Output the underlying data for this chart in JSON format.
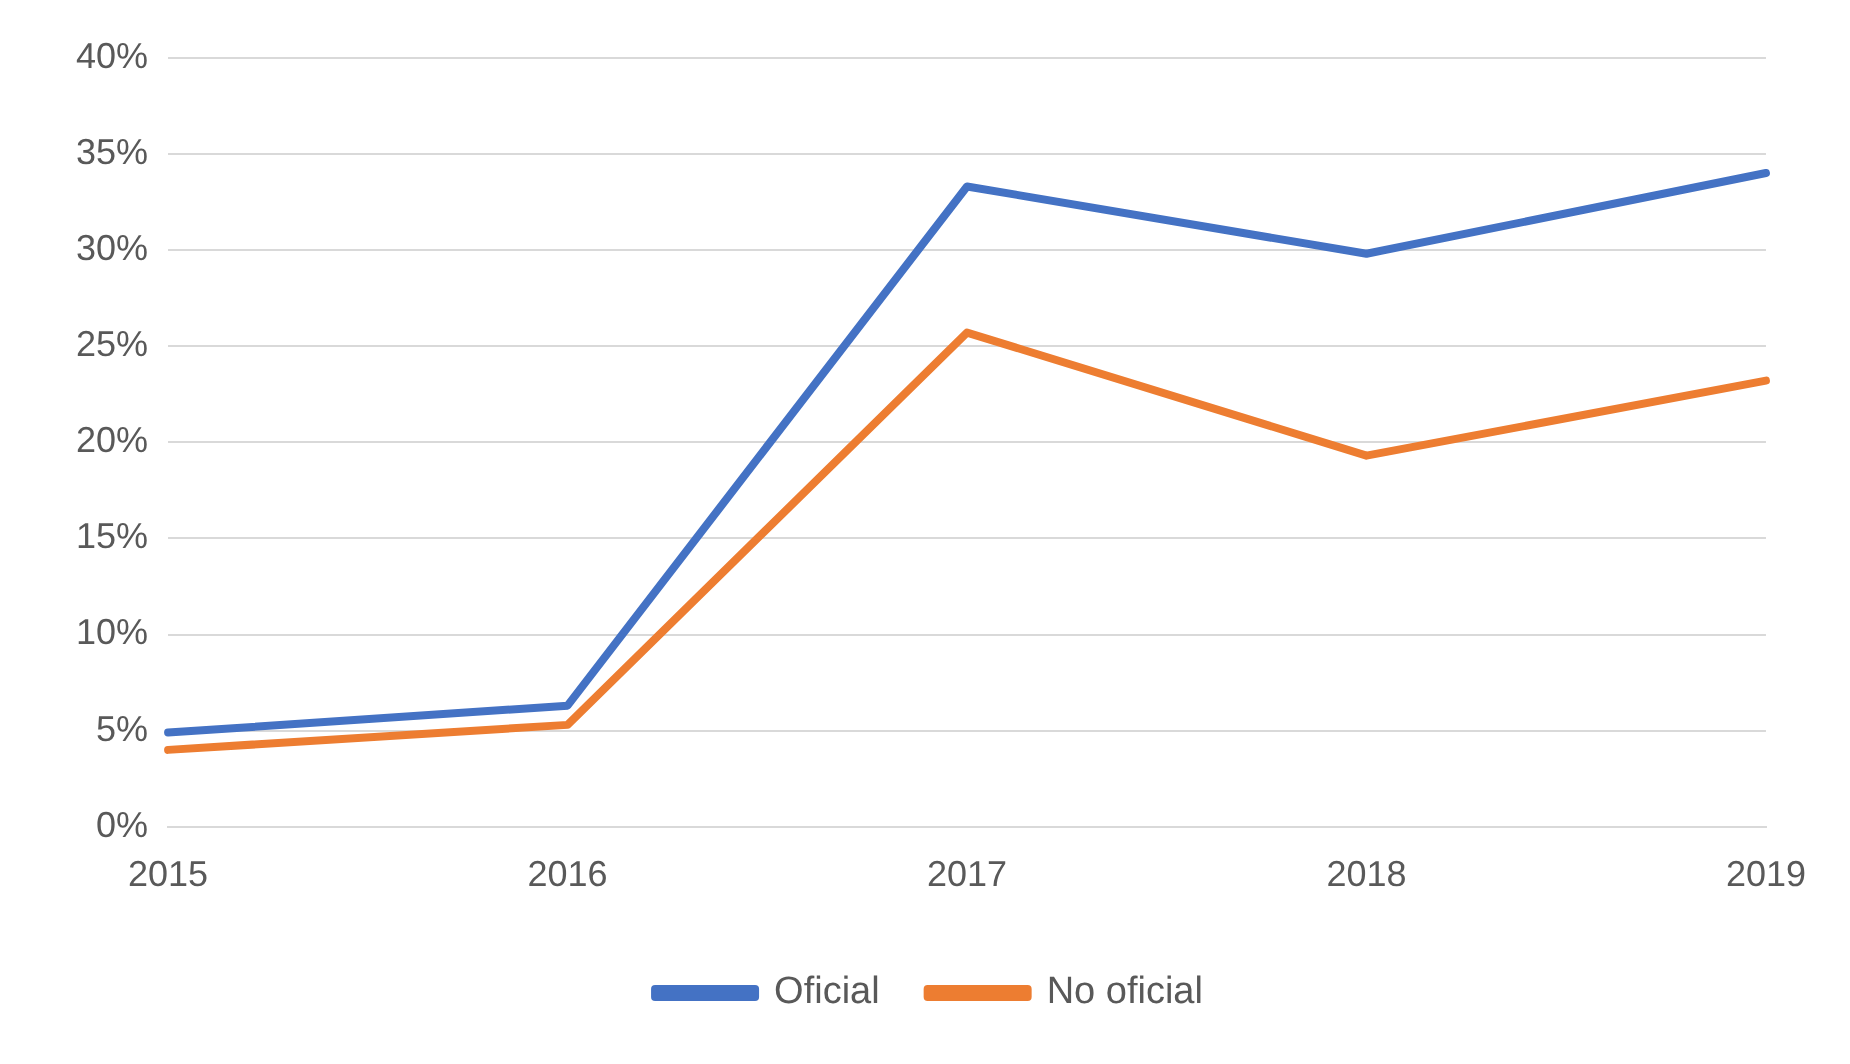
{
  "chart_data": {
    "type": "line",
    "categories": [
      "2015",
      "2016",
      "2017",
      "2018",
      "2019"
    ],
    "series": [
      {
        "name": "Oficial",
        "color": "#4472c4",
        "values": [
          4.9,
          6.3,
          33.3,
          29.8,
          34.0
        ]
      },
      {
        "name": "No oficial",
        "color": "#ed7d31",
        "values": [
          4.0,
          5.3,
          25.7,
          19.3,
          23.2
        ]
      }
    ],
    "ylim": [
      0,
      40
    ],
    "yticks": [
      {
        "value": 0,
        "label": "0%"
      },
      {
        "value": 5,
        "label": "5%"
      },
      {
        "value": 10,
        "label": "10%"
      },
      {
        "value": 15,
        "label": "15%"
      },
      {
        "value": 20,
        "label": "20%"
      },
      {
        "value": 25,
        "label": "25%"
      },
      {
        "value": 30,
        "label": "30%"
      },
      {
        "value": 35,
        "label": "35%"
      },
      {
        "value": 40,
        "label": "40%"
      }
    ],
    "grid": "y",
    "legend": "bottom",
    "marker": "none",
    "line_style": "solid"
  }
}
